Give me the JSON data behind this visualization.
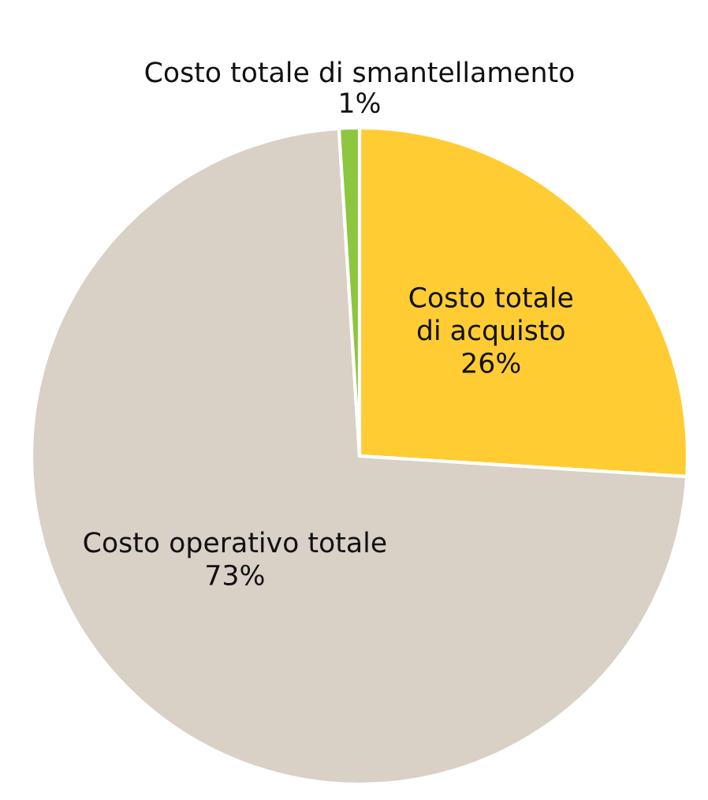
{
  "chart_data": {
    "type": "pie",
    "categories": [
      "Costo totale\ndi acquisto",
      "Costo operativo totale",
      "Costo totale di smantellamento"
    ],
    "values": [
      26,
      73,
      1
    ],
    "colors": [
      "#ffcc33",
      "#d9d0c6",
      "#8dc63f"
    ],
    "value_labels": [
      "26%",
      "73%",
      "1%"
    ]
  }
}
